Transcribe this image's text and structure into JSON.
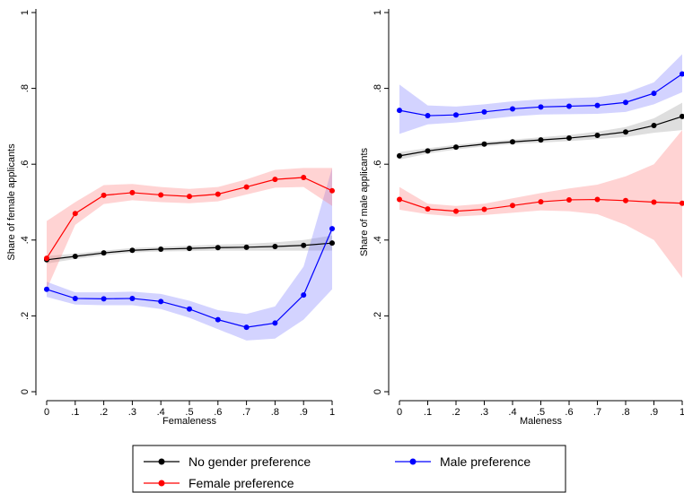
{
  "chart_data": [
    {
      "type": "line",
      "ylabel": "Share of female applicants",
      "xlabel": "Femaleness",
      "x": [
        0,
        0.1,
        0.2,
        0.3,
        0.4,
        0.5,
        0.6,
        0.7,
        0.8,
        0.9,
        1
      ],
      "xlim": [
        0,
        1
      ],
      "ylim": [
        0,
        1
      ],
      "xticks": [
        0,
        {
          "value": 0.1,
          "label": ".1"
        },
        {
          "value": 0.2,
          "label": ".2"
        },
        {
          "value": 0.3,
          "label": ".3"
        },
        {
          "value": 0.4,
          "label": ".4"
        },
        {
          "value": 0.5,
          "label": ".5"
        },
        {
          "value": 0.6,
          "label": ".6"
        },
        {
          "value": 0.7,
          "label": ".7"
        },
        {
          "value": 0.8,
          "label": ".8"
        },
        {
          "value": 0.9,
          "label": ".9"
        },
        1
      ],
      "yticks": [
        0,
        {
          "value": 0.2,
          "label": ".2"
        },
        {
          "value": 0.4,
          "label": ".4"
        },
        {
          "value": 0.6,
          "label": ".6"
        },
        {
          "value": 0.8,
          "label": ".8"
        },
        1
      ],
      "series": [
        {
          "name": "No gender preference",
          "color": "#000000",
          "band_color": "#a0a0a0",
          "values": [
            0.348,
            0.357,
            0.366,
            0.373,
            0.376,
            0.378,
            0.38,
            0.381,
            0.383,
            0.386,
            0.392
          ],
          "ci_lower": [
            0.338,
            0.35,
            0.36,
            0.367,
            0.37,
            0.371,
            0.372,
            0.372,
            0.372,
            0.372,
            0.372
          ],
          "ci_upper": [
            0.358,
            0.364,
            0.372,
            0.379,
            0.382,
            0.385,
            0.388,
            0.39,
            0.394,
            0.4,
            0.412
          ]
        },
        {
          "name": "Male preference",
          "color": "#0000ff",
          "band_color": "#8080ff",
          "values": [
            0.27,
            0.246,
            0.245,
            0.246,
            0.238,
            0.218,
            0.19,
            0.17,
            0.181,
            0.255,
            0.43
          ],
          "ci_lower": [
            0.25,
            0.23,
            0.228,
            0.228,
            0.218,
            0.195,
            0.165,
            0.135,
            0.14,
            0.19,
            0.27
          ],
          "ci_upper": [
            0.29,
            0.262,
            0.262,
            0.264,
            0.258,
            0.24,
            0.215,
            0.205,
            0.225,
            0.33,
            0.59
          ]
        },
        {
          "name": "Female preference",
          "color": "#ff0000",
          "band_color": "#ff8080",
          "values": [
            0.352,
            0.47,
            0.518,
            0.525,
            0.519,
            0.515,
            0.521,
            0.54,
            0.56,
            0.565,
            0.53
          ],
          "ci_lower": [
            0.27,
            0.44,
            0.495,
            0.505,
            0.5,
            0.497,
            0.502,
            0.52,
            0.538,
            0.54,
            0.49
          ],
          "ci_upper": [
            0.45,
            0.5,
            0.545,
            0.548,
            0.54,
            0.535,
            0.54,
            0.56,
            0.585,
            0.59,
            0.59
          ]
        }
      ]
    },
    {
      "type": "line",
      "ylabel": "Share of male applicants",
      "xlabel": "Maleness",
      "x": [
        0,
        0.1,
        0.2,
        0.3,
        0.4,
        0.5,
        0.6,
        0.7,
        0.8,
        0.9,
        1
      ],
      "xlim": [
        0,
        1
      ],
      "ylim": [
        0,
        1
      ],
      "xticks": [
        0,
        {
          "value": 0.1,
          "label": ".1"
        },
        {
          "value": 0.2,
          "label": ".2"
        },
        {
          "value": 0.3,
          "label": ".3"
        },
        {
          "value": 0.4,
          "label": ".4"
        },
        {
          "value": 0.5,
          "label": ".5"
        },
        {
          "value": 0.6,
          "label": ".6"
        },
        {
          "value": 0.7,
          "label": ".7"
        },
        {
          "value": 0.8,
          "label": ".8"
        },
        {
          "value": 0.9,
          "label": ".9"
        },
        1
      ],
      "yticks": [
        0,
        {
          "value": 0.2,
          "label": ".2"
        },
        {
          "value": 0.4,
          "label": ".4"
        },
        {
          "value": 0.6,
          "label": ".6"
        },
        {
          "value": 0.8,
          "label": ".8"
        },
        1
      ],
      "series": [
        {
          "name": "No gender preference",
          "color": "#000000",
          "band_color": "#a0a0a0",
          "values": [
            0.622,
            0.635,
            0.645,
            0.653,
            0.659,
            0.664,
            0.669,
            0.676,
            0.685,
            0.702,
            0.726
          ],
          "ci_lower": [
            0.612,
            0.628,
            0.639,
            0.647,
            0.653,
            0.657,
            0.661,
            0.666,
            0.672,
            0.683,
            0.69
          ],
          "ci_upper": [
            0.632,
            0.642,
            0.651,
            0.659,
            0.665,
            0.671,
            0.677,
            0.686,
            0.698,
            0.721,
            0.762
          ]
        },
        {
          "name": "Male preference",
          "color": "#0000ff",
          "band_color": "#8080ff",
          "values": [
            0.742,
            0.728,
            0.73,
            0.738,
            0.746,
            0.751,
            0.753,
            0.755,
            0.763,
            0.787,
            0.838
          ],
          "ci_lower": [
            0.68,
            0.705,
            0.71,
            0.718,
            0.726,
            0.731,
            0.732,
            0.733,
            0.738,
            0.758,
            0.79
          ],
          "ci_upper": [
            0.81,
            0.755,
            0.752,
            0.758,
            0.766,
            0.771,
            0.774,
            0.777,
            0.788,
            0.816,
            0.89
          ]
        },
        {
          "name": "Female preference",
          "color": "#ff0000",
          "band_color": "#ff8080",
          "values": [
            0.507,
            0.482,
            0.476,
            0.481,
            0.491,
            0.501,
            0.506,
            0.507,
            0.504,
            0.5,
            0.497
          ],
          "ci_lower": [
            0.48,
            0.468,
            0.462,
            0.466,
            0.472,
            0.478,
            0.476,
            0.468,
            0.44,
            0.4,
            0.3
          ],
          "ci_upper": [
            0.54,
            0.496,
            0.49,
            0.496,
            0.51,
            0.524,
            0.536,
            0.546,
            0.568,
            0.6,
            0.69
          ]
        }
      ]
    }
  ]
}
